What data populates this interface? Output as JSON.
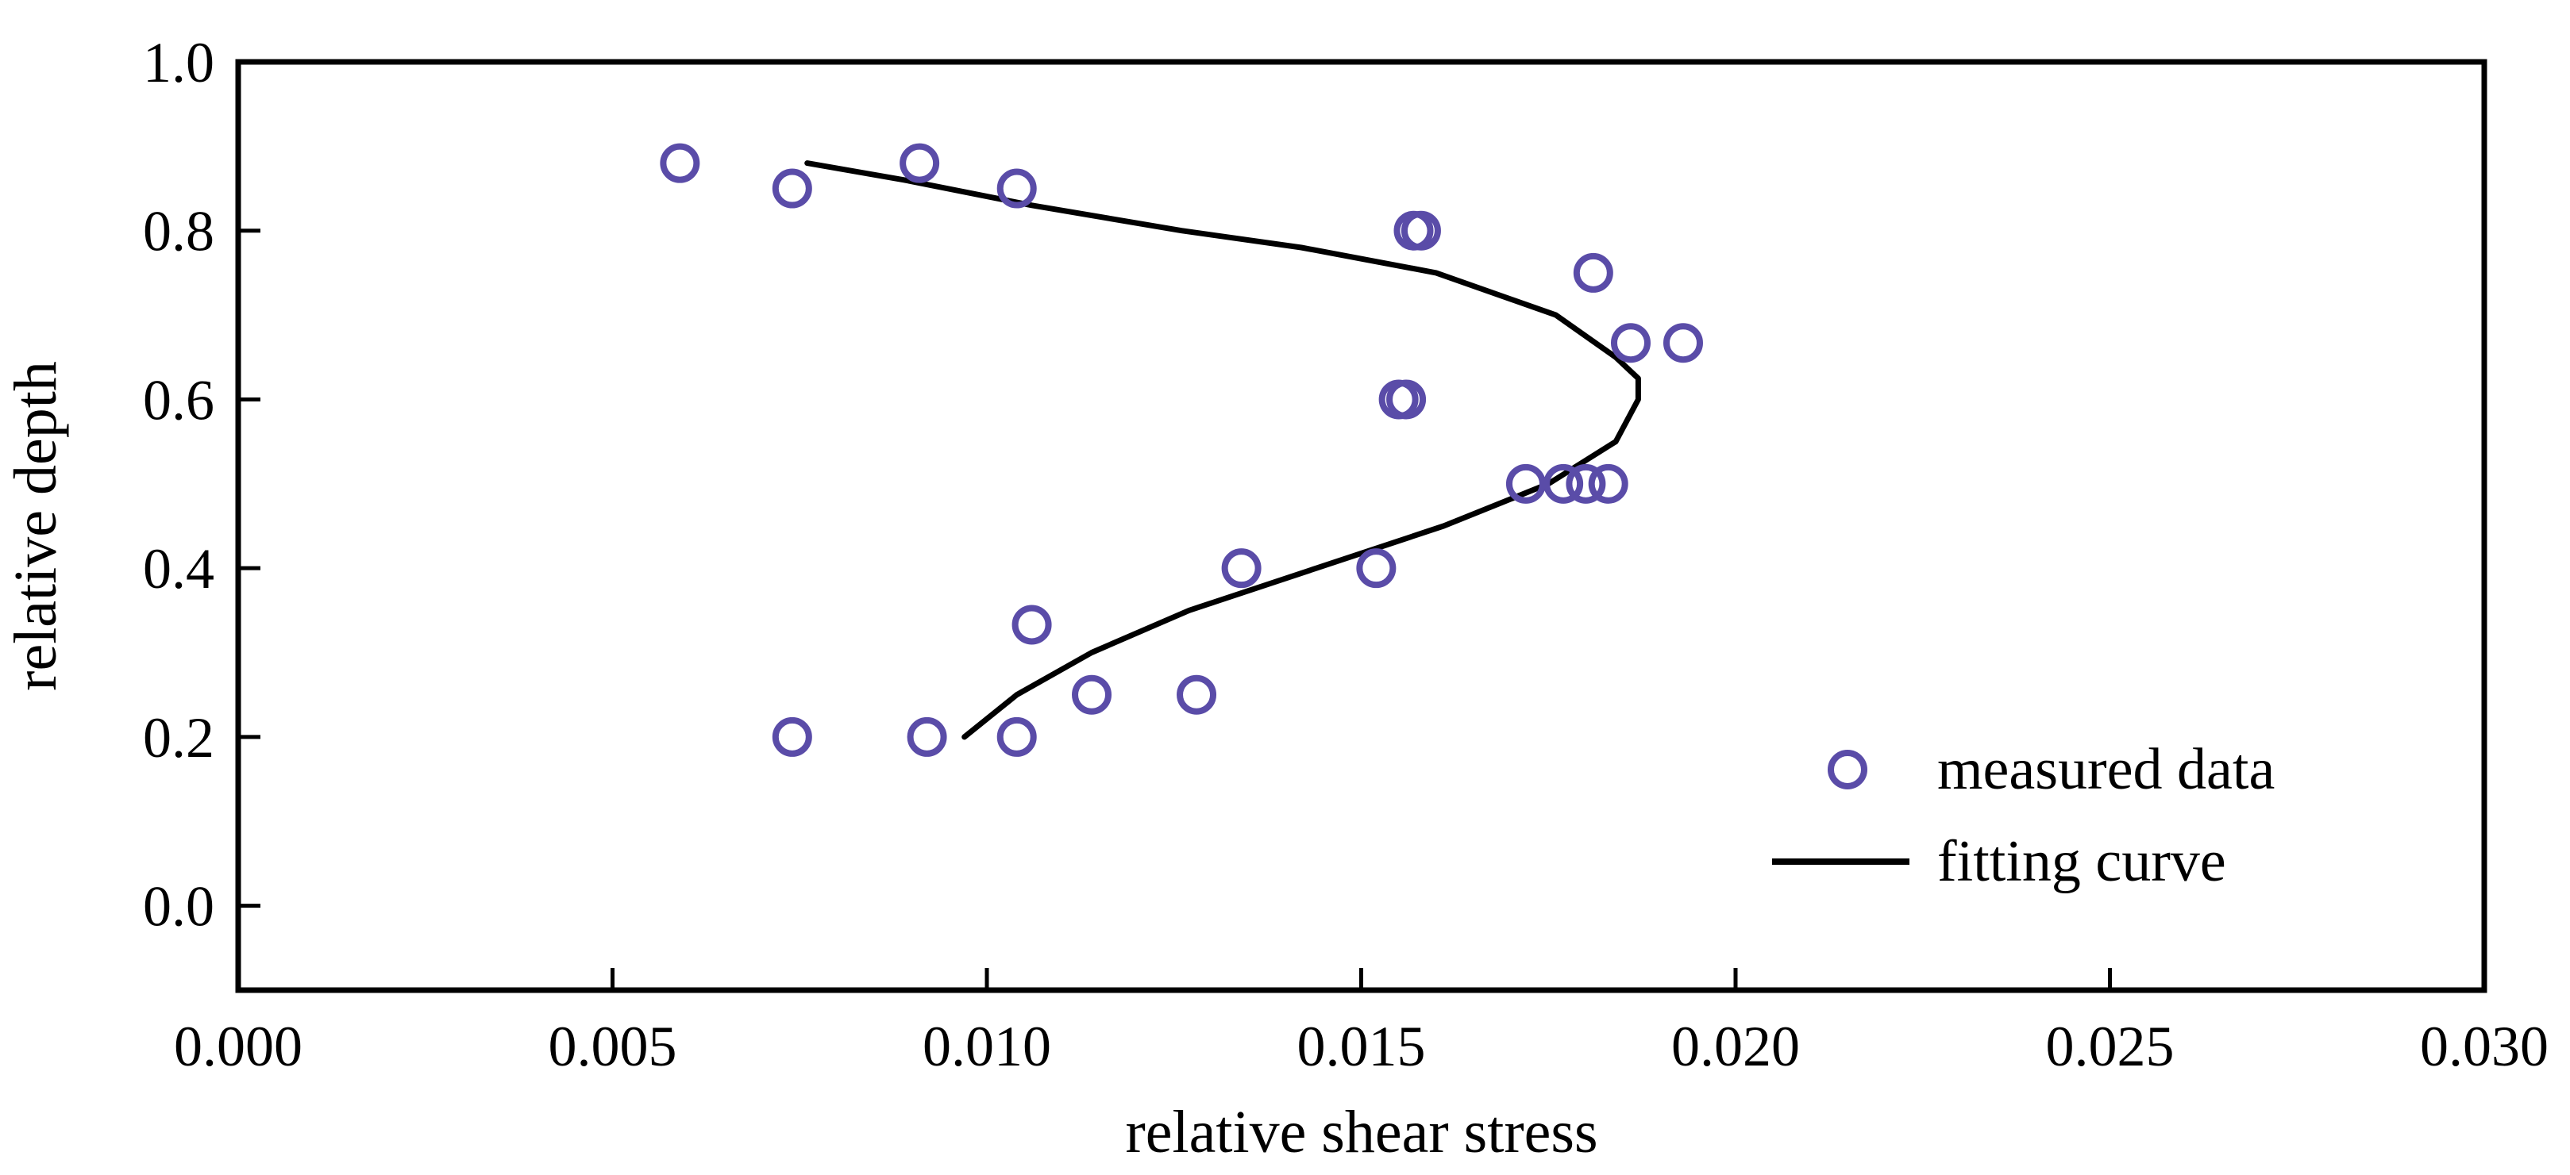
{
  "colors": {
    "marker": "#5a4ca8",
    "curve": "#000000",
    "axis": "#000000",
    "background": "#ffffff"
  },
  "chart_data": {
    "type": "scatter",
    "title": "",
    "xlabel": "relative shear stress",
    "ylabel": "relative depth",
    "xlim": [
      0.0,
      0.03
    ],
    "ylim": [
      -0.1,
      1.0
    ],
    "grid": false,
    "legend_position": "bottom-right",
    "x_ticks": [
      0.0,
      0.005,
      0.01,
      0.015,
      0.02,
      0.025,
      0.03
    ],
    "x_tick_labels": [
      "0.000",
      "0.005",
      "0.010",
      "0.015",
      "0.020",
      "0.025",
      "0.030"
    ],
    "y_ticks": [
      0.0,
      0.2,
      0.4,
      0.6,
      0.8,
      1.0
    ],
    "y_tick_labels": [
      "0.0",
      "0.2",
      "0.4",
      "0.6",
      "0.8",
      "1.0"
    ],
    "series": [
      {
        "name": "measured data",
        "kind": "markers",
        "marker": "open-circle",
        "points": [
          {
            "x": 0.0059,
            "y": 0.88
          },
          {
            "x": 0.0074,
            "y": 0.85
          },
          {
            "x": 0.0091,
            "y": 0.88
          },
          {
            "x": 0.0104,
            "y": 0.85
          },
          {
            "x": 0.0157,
            "y": 0.8
          },
          {
            "x": 0.0158,
            "y": 0.8
          },
          {
            "x": 0.0181,
            "y": 0.75
          },
          {
            "x": 0.0186,
            "y": 0.667
          },
          {
            "x": 0.0193,
            "y": 0.667
          },
          {
            "x": 0.0155,
            "y": 0.6
          },
          {
            "x": 0.0156,
            "y": 0.6
          },
          {
            "x": 0.0172,
            "y": 0.5
          },
          {
            "x": 0.0177,
            "y": 0.5
          },
          {
            "x": 0.018,
            "y": 0.5
          },
          {
            "x": 0.0183,
            "y": 0.5
          },
          {
            "x": 0.0134,
            "y": 0.4
          },
          {
            "x": 0.0152,
            "y": 0.4
          },
          {
            "x": 0.0106,
            "y": 0.333
          },
          {
            "x": 0.0114,
            "y": 0.25
          },
          {
            "x": 0.0128,
            "y": 0.25
          },
          {
            "x": 0.0074,
            "y": 0.2
          },
          {
            "x": 0.0092,
            "y": 0.2
          },
          {
            "x": 0.0104,
            "y": 0.2
          }
        ]
      },
      {
        "name": "fitting curve",
        "kind": "line",
        "points": [
          {
            "x": 0.0097,
            "y": 0.2
          },
          {
            "x": 0.0104,
            "y": 0.25
          },
          {
            "x": 0.0114,
            "y": 0.3
          },
          {
            "x": 0.0127,
            "y": 0.35
          },
          {
            "x": 0.0144,
            "y": 0.4
          },
          {
            "x": 0.0161,
            "y": 0.45
          },
          {
            "x": 0.0175,
            "y": 0.5
          },
          {
            "x": 0.0184,
            "y": 0.55
          },
          {
            "x": 0.0187,
            "y": 0.6
          },
          {
            "x": 0.0187,
            "y": 0.625
          },
          {
            "x": 0.0184,
            "y": 0.65
          },
          {
            "x": 0.0176,
            "y": 0.7
          },
          {
            "x": 0.016,
            "y": 0.75
          },
          {
            "x": 0.0142,
            "y": 0.78
          },
          {
            "x": 0.0126,
            "y": 0.8
          },
          {
            "x": 0.0106,
            "y": 0.83
          },
          {
            "x": 0.0089,
            "y": 0.86
          },
          {
            "x": 0.0076,
            "y": 0.88
          }
        ]
      }
    ]
  }
}
